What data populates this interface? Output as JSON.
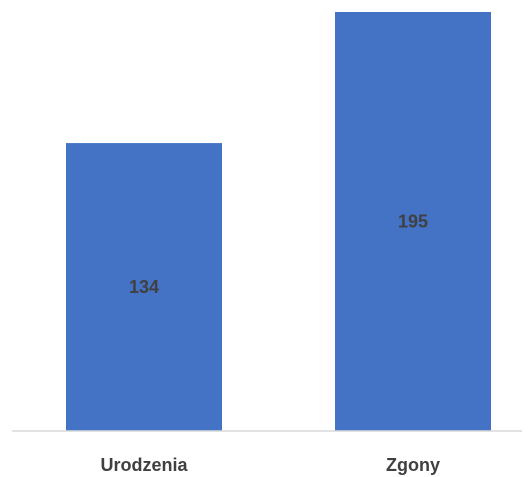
{
  "chart_data": {
    "type": "bar",
    "categories": [
      "Urodzenia",
      "Zgony"
    ],
    "values": [
      134,
      195
    ],
    "title": "",
    "xlabel": "",
    "ylabel": "",
    "ylim": [
      0,
      195
    ],
    "grid": false,
    "legend": "none",
    "data_labels": "inside-center",
    "bar_color": "#4472C4",
    "label_color": "#404040",
    "axis_color": "#D9D9D9"
  }
}
